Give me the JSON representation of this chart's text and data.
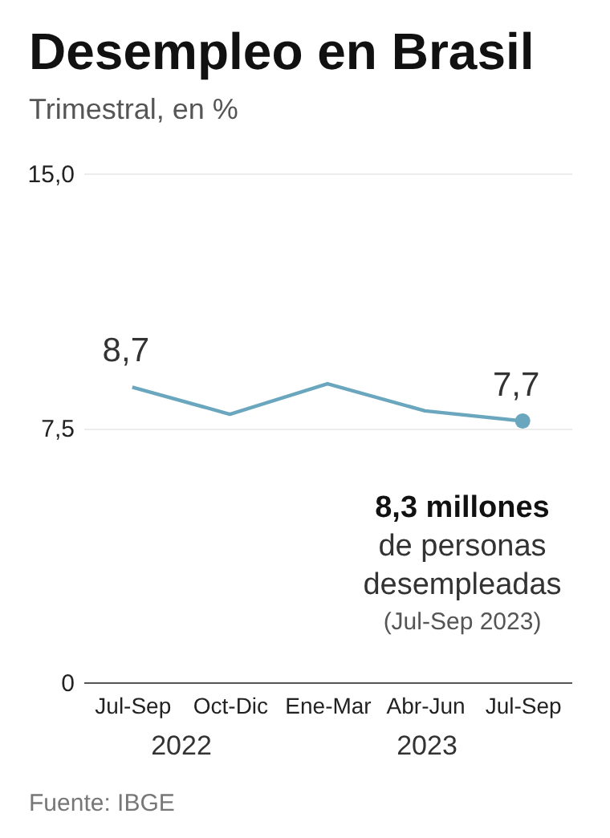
{
  "chart_data": {
    "type": "line",
    "title": "Desempleo en Brasil",
    "subtitle": "Trimestral, en %",
    "categories": [
      "Jul-Sep",
      "Oct-Dic",
      "Ene-Mar",
      "Abr-Jun",
      "Jul-Sep"
    ],
    "series": [
      {
        "color": "#6aa6be",
        "values": [
          8.7,
          7.9,
          8.8,
          8.0,
          7.7
        ],
        "value_labels": [
          "8,7",
          null,
          null,
          null,
          "7,7"
        ]
      },
      {
        "type": "scatter",
        "color": "#6aa6be",
        "values": [
          null,
          null,
          null,
          null,
          7.7
        ]
      }
    ],
    "ylim": [
      0,
      15
    ],
    "yticks": [
      0,
      {
        "value": 7.5,
        "label": "7,5"
      },
      {
        "value": 15,
        "label": "15,0"
      }
    ],
    "grid": "y",
    "annotations": [
      "8,3 millones",
      "de personas",
      "desempleadas",
      "(Jul-Sep 2023)",
      "2022",
      "2023",
      "Fuente: IBGE"
    ]
  }
}
